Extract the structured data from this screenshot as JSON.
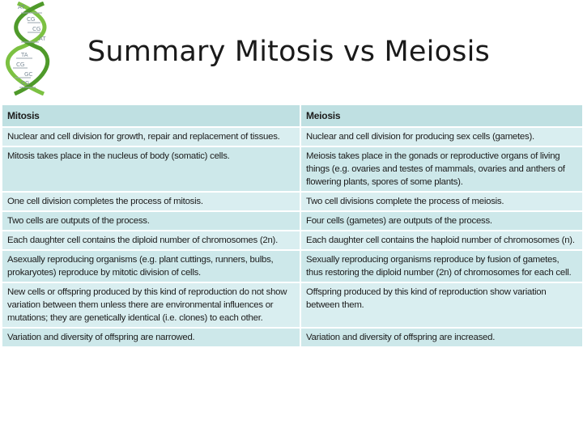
{
  "slide": {
    "title": "Summary Mitosis vs Meiosis",
    "dna_labels": [
      "AT",
      "CG",
      "CG",
      "AT",
      "TA",
      "CG",
      "GC",
      "CG"
    ]
  },
  "table": {
    "headers": [
      "Mitosis",
      "Meiosis"
    ],
    "rows": [
      [
        "Nuclear and cell division for growth, repair and replacement of tissues.",
        "Nuclear and cell division for producing sex cells (gametes)."
      ],
      [
        "Mitosis takes place in the nucleus of body (somatic) cells.",
        "Meiosis takes place in the gonads or reproductive organs of living things (e.g. ovaries and testes of mammals, ovaries and anthers of flowering plants, spores of some plants)."
      ],
      [
        "One cell division completes the process of mitosis.",
        "Two cell divisions complete the process of meiosis."
      ],
      [
        "Two cells are outputs of the process.",
        "Four cells (gametes) are outputs of the process."
      ],
      [
        "Each daughter cell contains the diploid number of chromosomes (2n).",
        "Each daughter cell contains the haploid number of chromosomes (n)."
      ],
      [
        "Asexually reproducing organisms (e.g. plant cuttings, runners, bulbs, prokaryotes) reproduce by mitotic division of cells.",
        "Sexually reproducing organisms reproduce by fusion of gametes, thus restoring the diploid number (2n) of chromosomes for each cell."
      ],
      [
        "New cells or offspring produced by this kind of reproduction do not show variation between them unless there are environmental influences or mutations; they are genetically identical (i.e. clones) to each other.",
        "Offspring produced by this kind of reproduction show variation between them."
      ],
      [
        "Variation and diversity of offspring are narrowed.",
        "Variation and diversity of offspring are increased."
      ]
    ]
  }
}
